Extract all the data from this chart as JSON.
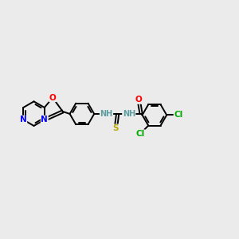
{
  "bg_color": "#ebebeb",
  "figsize": [
    3.0,
    3.0
  ],
  "dpi": 100,
  "bond_color": "#000000",
  "bond_width": 1.4,
  "atom_colors": {
    "N": "#0000ff",
    "O": "#ff0000",
    "S": "#bbaa00",
    "Cl": "#00aa00",
    "H_teal": "#5f9ea0",
    "C": "#000000"
  },
  "font_size": 7.5
}
